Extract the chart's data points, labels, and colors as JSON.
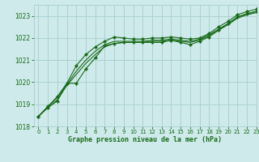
{
  "title": "Graphe pression niveau de la mer (hPa)",
  "background_color": "#ceeaea",
  "grid_color": "#a8cece",
  "line_color": "#1a6b1a",
  "xlim": [
    -0.5,
    23
  ],
  "ylim": [
    1018,
    1023.5
  ],
  "yticks": [
    1018,
    1019,
    1020,
    1021,
    1022,
    1023
  ],
  "xticks": [
    0,
    1,
    2,
    3,
    4,
    5,
    6,
    7,
    8,
    9,
    10,
    11,
    12,
    13,
    14,
    15,
    16,
    17,
    18,
    19,
    20,
    21,
    22,
    23
  ],
  "series": [
    {
      "y": [
        1018.45,
        1018.9,
        1019.35,
        1019.95,
        1020.75,
        1021.25,
        1021.6,
        1021.85,
        1022.05,
        1022.0,
        1021.95,
        1021.95,
        1022.0,
        1022.0,
        1022.05,
        1022.0,
        1021.95,
        1022.0,
        1022.2,
        1022.5,
        1022.75,
        1023.05,
        1023.2,
        1023.3
      ],
      "marker": true
    },
    {
      "y": [
        1018.45,
        1018.9,
        1019.3,
        1019.9,
        1020.5,
        1021.0,
        1021.4,
        1021.7,
        1021.85,
        1021.85,
        1021.85,
        1021.85,
        1021.9,
        1021.9,
        1021.95,
        1021.9,
        1021.85,
        1021.95,
        1022.15,
        1022.4,
        1022.65,
        1022.95,
        1023.1,
        1023.2
      ],
      "marker": false
    },
    {
      "y": [
        1018.45,
        1018.85,
        1019.2,
        1019.85,
        1020.35,
        1020.85,
        1021.25,
        1021.6,
        1021.75,
        1021.8,
        1021.8,
        1021.8,
        1021.85,
        1021.85,
        1021.9,
        1021.85,
        1021.8,
        1021.9,
        1022.1,
        1022.35,
        1022.6,
        1022.9,
        1023.05,
        1023.15
      ],
      "marker": false
    },
    {
      "y": [
        1018.45,
        1018.85,
        1019.15,
        1019.95,
        1019.95,
        1020.6,
        1021.1,
        1021.65,
        1021.75,
        1021.8,
        1021.8,
        1021.8,
        1021.8,
        1021.8,
        1021.9,
        1021.8,
        1021.7,
        1021.85,
        1022.05,
        1022.35,
        1022.65,
        1022.95,
        1023.1,
        1023.2
      ],
      "marker": true
    }
  ]
}
